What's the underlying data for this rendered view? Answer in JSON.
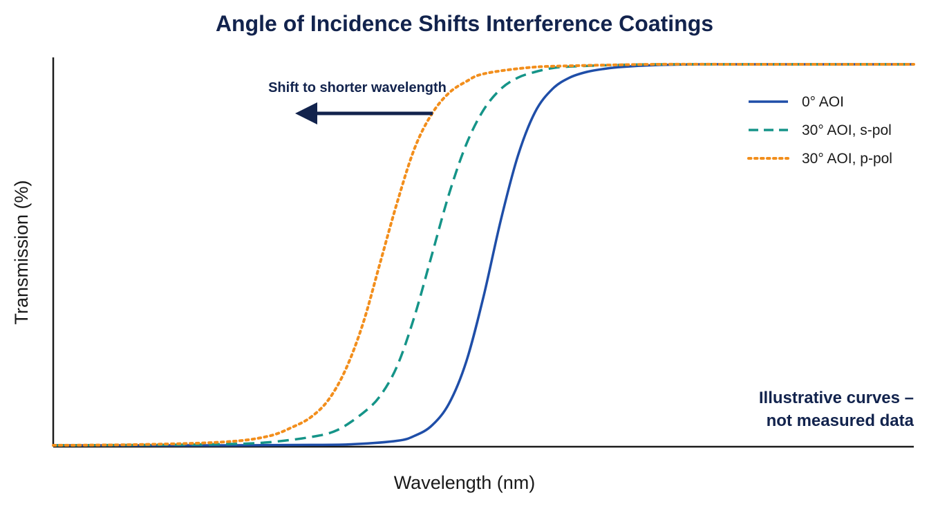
{
  "chart_data": {
    "type": "line",
    "title": "Angle of Incidence Shifts Interference Coatings",
    "xlabel": "Wavelength (nm)",
    "ylabel": "Transmission (%)",
    "xlim": [
      0,
      100
    ],
    "ylim": [
      0,
      100
    ],
    "grid": false,
    "legend_position": "top-right",
    "series": [
      {
        "name": "0° AOI",
        "style": "solid",
        "color": "#1f4ea8",
        "x": [
          0,
          10,
          20,
          30,
          35,
          40,
          42,
          44,
          46,
          48,
          50,
          52,
          54,
          56,
          58,
          60,
          62,
          64,
          66,
          70,
          75,
          80,
          90,
          100
        ],
        "y": [
          0,
          0,
          0,
          0.1,
          0.3,
          1.2,
          2.5,
          5.2,
          11,
          22,
          39,
          59,
          76,
          87.5,
          93.5,
          96.5,
          98,
          98.8,
          99.3,
          99.8,
          100,
          100,
          100,
          100
        ]
      },
      {
        "name": "30° AOI, s-pol",
        "style": "dashed",
        "color": "#159488",
        "x": [
          0,
          10,
          20,
          25,
          30,
          33,
          36,
          38,
          40,
          42,
          44,
          46,
          48,
          50,
          52,
          54,
          56,
          58,
          60,
          65,
          70,
          80,
          90,
          100
        ],
        "y": [
          0,
          0.1,
          0.3,
          0.8,
          2.2,
          4,
          8.5,
          13,
          21,
          34,
          50,
          66,
          79,
          88,
          93.5,
          96.5,
          98,
          99,
          99.4,
          99.8,
          100,
          100,
          100,
          100
        ]
      },
      {
        "name": "30° AOI, p-pol",
        "style": "dotted",
        "color": "#f28e1c",
        "x": [
          0,
          10,
          20,
          25,
          28,
          30,
          32,
          34,
          36,
          38,
          40,
          42,
          44,
          46,
          48,
          50,
          55,
          60,
          70,
          80,
          90,
          100
        ],
        "y": [
          0,
          0.2,
          0.9,
          2.4,
          5,
          7.5,
          12,
          20,
          32,
          48,
          64,
          78,
          87,
          92.5,
          95.5,
          97.5,
          99.1,
          99.6,
          100,
          100,
          100,
          100
        ]
      }
    ],
    "annotations": {
      "shift_arrow_label": "Shift to shorter wavelength",
      "note_line1": "Illustrative curves –",
      "note_line2": "not measured data"
    },
    "colors": {
      "title": "#12234d",
      "annotation": "#12234d",
      "axis": "#1a1a1a"
    }
  }
}
